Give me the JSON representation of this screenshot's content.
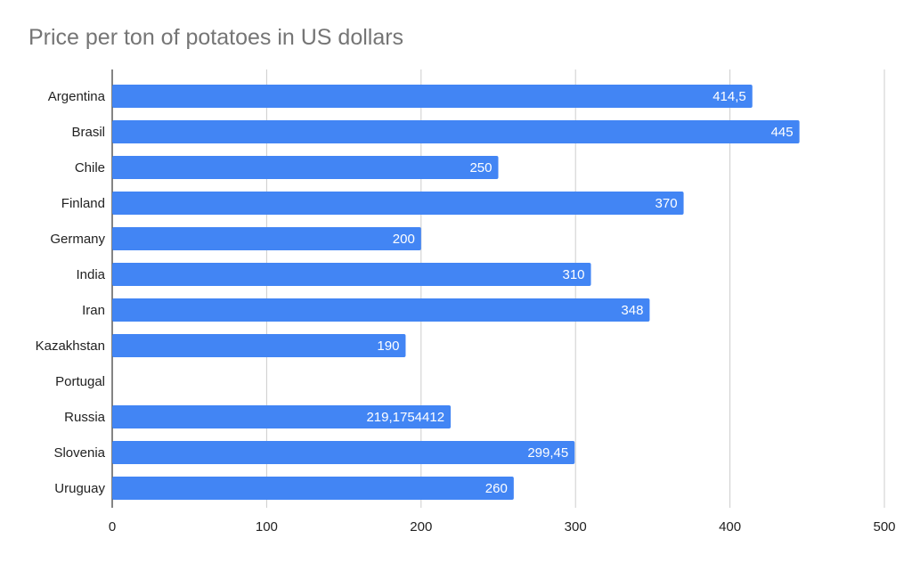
{
  "chart_data": {
    "type": "bar",
    "orientation": "horizontal",
    "title": "Price per ton of potatoes in US dollars",
    "categories": [
      "Argentina",
      "Brasil",
      "Chile",
      "Finland",
      "Germany",
      "India",
      "Iran",
      "Kazakhstan",
      "Portugal",
      "Russia",
      "Slovenia",
      "Uruguay"
    ],
    "values": [
      414.5,
      445,
      250,
      370,
      200,
      310,
      348,
      190,
      null,
      219.1754412,
      299.45,
      260
    ],
    "value_labels": [
      "414,5",
      "445",
      "250",
      "370",
      "200",
      "310",
      "348",
      "190",
      "",
      "219,1754412",
      "299,45",
      "260"
    ],
    "xlim": [
      0,
      500
    ],
    "xticks": [
      0,
      100,
      200,
      300,
      400,
      500
    ],
    "xlabel": "",
    "ylabel": "",
    "grid": true,
    "legend": "none",
    "bar_color": "#4285f4"
  }
}
